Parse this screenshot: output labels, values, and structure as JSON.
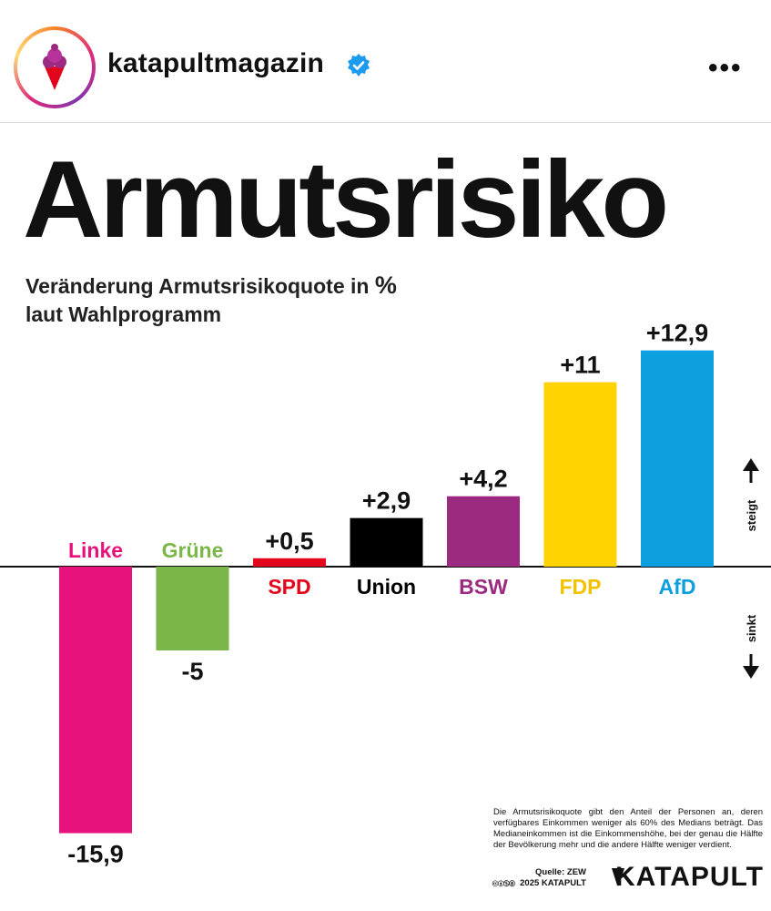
{
  "post": {
    "username": "katapultmagazin",
    "more_label": "•••"
  },
  "infographic": {
    "title": "Armutsrisiko",
    "subtitle_line1": "Veränderung Armutsrisikoquote in",
    "subtitle_unit": "%",
    "subtitle_line2": "laut Wahlprogramm",
    "up_label": "steigt",
    "down_label": "sinkt",
    "footnote": "Die Armutsrisikoquote gibt den Anteil der Personen an, deren verfügbares Einkommen weniger als 60% des Medians beträgt. Das Medianeinkommen ist die Einkommenshöhe, bei der genau die Hälfte der Bevölkerung mehr und die andere Hälfte weniger verdient.",
    "source": "Quelle: ZEW",
    "copyright": "2025 KATAPULT",
    "cc_icons": "🅭🅯🄏🄍",
    "brand": "KATAPULT"
  },
  "colors": {
    "Linke": "#e8127c",
    "Grüne": "#7ab648",
    "SPD": "#e3051b",
    "Union": "#000000",
    "BSW": "#9b2a80",
    "FDP": "#ffd200",
    "AfD": "#0da0e0"
  },
  "chart_data": {
    "type": "bar",
    "categories": [
      "Linke",
      "Grüne",
      "SPD",
      "Union",
      "BSW",
      "FDP",
      "AfD"
    ],
    "values": [
      -15.9,
      -5,
      0.5,
      2.9,
      4.2,
      11,
      12.9
    ],
    "value_labels": [
      "-15,9",
      "-5",
      "+0,5",
      "+2,9",
      "+4,2",
      "+11",
      "+12,9"
    ],
    "title": "Armutsrisiko",
    "ylabel": "",
    "xlabel": ""
  }
}
